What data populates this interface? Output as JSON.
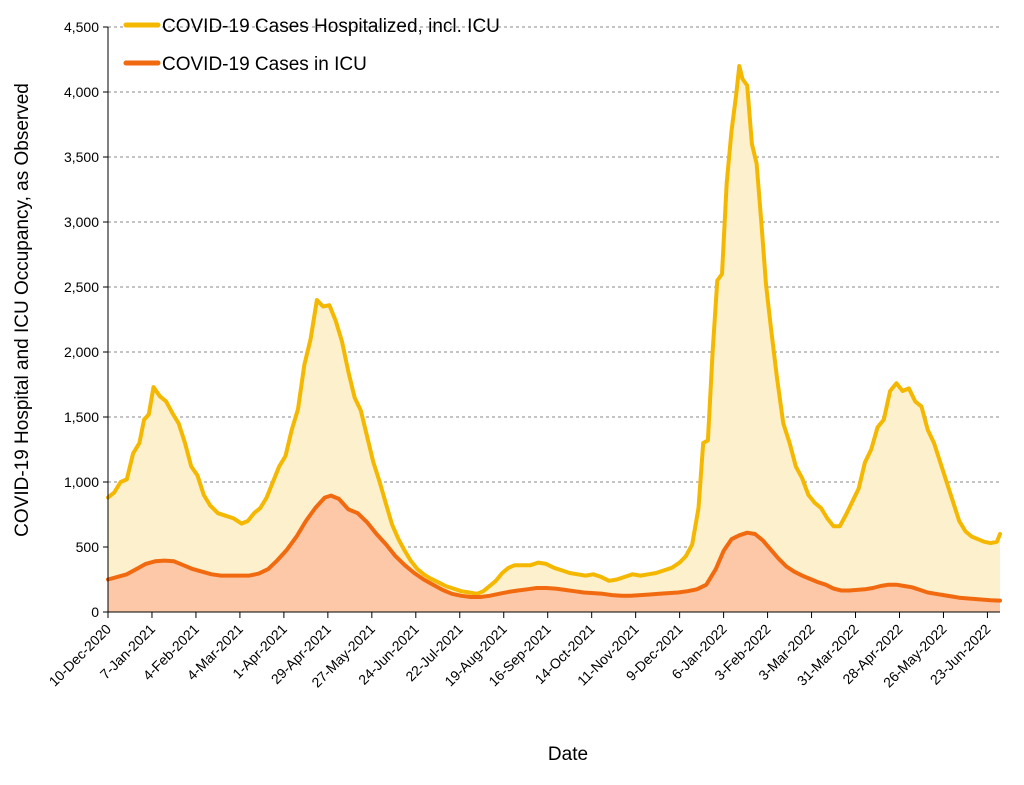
{
  "chart_data": {
    "type": "area",
    "title": "",
    "xlabel": "Date",
    "ylabel": "COVID-19 Hospital and ICU Occupancy, as Observed",
    "ylim": [
      0,
      4500
    ],
    "yticks": [
      0,
      500,
      1000,
      1500,
      2000,
      2500,
      3000,
      3500,
      4000,
      4500
    ],
    "ytick_labels": [
      "0",
      "500",
      "1,000",
      "1,500",
      "2,000",
      "2,500",
      "3,000",
      "3,500",
      "4,000",
      "4,500"
    ],
    "xlim": [
      "2020-12-10",
      "2022-07-01"
    ],
    "xtick_dates": [
      "2020-12-10",
      "2021-01-07",
      "2021-02-04",
      "2021-03-04",
      "2021-04-01",
      "2021-04-29",
      "2021-05-27",
      "2021-06-24",
      "2021-07-22",
      "2021-08-19",
      "2021-09-16",
      "2021-10-14",
      "2021-11-11",
      "2021-12-09",
      "2022-01-06",
      "2022-02-03",
      "2022-03-03",
      "2022-03-31",
      "2022-04-28",
      "2022-05-26",
      "2022-06-23"
    ],
    "xtick_labels": [
      "10-Dec-2020",
      "7-Jan-2021",
      "4-Feb-2021",
      "4-Mar-2021",
      "1-Apr-2021",
      "29-Apr-2021",
      "27-May-2021",
      "24-Jun-2021",
      "22-Jul-2021",
      "19-Aug-2021",
      "16-Sep-2021",
      "14-Oct-2021",
      "11-Nov-2021",
      "9-Dec-2021",
      "6-Jan-2022",
      "3-Feb-2022",
      "3-Mar-2022",
      "31-Mar-2022",
      "28-Apr-2022",
      "26-May-2022",
      "23-Jun-2022"
    ],
    "grid": "horizontal-dashed",
    "legend_position": "top-left",
    "series": [
      {
        "name": "COVID-19 Cases Hospitalized, incl. ICU",
        "color": "#f5b800",
        "fill": "#fdf0cc",
        "points": [
          [
            "2020-12-10",
            880
          ],
          [
            "2020-12-14",
            920
          ],
          [
            "2020-12-18",
            1000
          ],
          [
            "2020-12-22",
            1020
          ],
          [
            "2020-12-26",
            1220
          ],
          [
            "2020-12-30",
            1300
          ],
          [
            "2021-01-02",
            1480
          ],
          [
            "2021-01-05",
            1520
          ],
          [
            "2021-01-08",
            1730
          ],
          [
            "2021-01-12",
            1660
          ],
          [
            "2021-01-16",
            1620
          ],
          [
            "2021-01-20",
            1530
          ],
          [
            "2021-01-24",
            1450
          ],
          [
            "2021-01-28",
            1300
          ],
          [
            "2021-02-01",
            1120
          ],
          [
            "2021-02-05",
            1050
          ],
          [
            "2021-02-09",
            900
          ],
          [
            "2021-02-13",
            820
          ],
          [
            "2021-02-18",
            760
          ],
          [
            "2021-02-23",
            740
          ],
          [
            "2021-02-28",
            720
          ],
          [
            "2021-03-05",
            680
          ],
          [
            "2021-03-09",
            700
          ],
          [
            "2021-03-13",
            760
          ],
          [
            "2021-03-17",
            800
          ],
          [
            "2021-03-21",
            880
          ],
          [
            "2021-03-25",
            1000
          ],
          [
            "2021-03-29",
            1120
          ],
          [
            "2021-04-02",
            1200
          ],
          [
            "2021-04-06",
            1400
          ],
          [
            "2021-04-10",
            1560
          ],
          [
            "2021-04-14",
            1900
          ],
          [
            "2021-04-18",
            2100
          ],
          [
            "2021-04-22",
            2400
          ],
          [
            "2021-04-26",
            2350
          ],
          [
            "2021-04-30",
            2360
          ],
          [
            "2021-05-04",
            2240
          ],
          [
            "2021-05-08",
            2080
          ],
          [
            "2021-05-12",
            1850
          ],
          [
            "2021-05-16",
            1650
          ],
          [
            "2021-05-20",
            1550
          ],
          [
            "2021-05-24",
            1350
          ],
          [
            "2021-05-28",
            1150
          ],
          [
            "2021-06-01",
            1000
          ],
          [
            "2021-06-05",
            830
          ],
          [
            "2021-06-09",
            670
          ],
          [
            "2021-06-13",
            560
          ],
          [
            "2021-06-17",
            470
          ],
          [
            "2021-06-21",
            390
          ],
          [
            "2021-06-25",
            330
          ],
          [
            "2021-06-29",
            290
          ],
          [
            "2021-07-03",
            260
          ],
          [
            "2021-07-08",
            230
          ],
          [
            "2021-07-13",
            200
          ],
          [
            "2021-07-18",
            180
          ],
          [
            "2021-07-23",
            160
          ],
          [
            "2021-07-28",
            150
          ],
          [
            "2021-08-02",
            140
          ],
          [
            "2021-08-06",
            160
          ],
          [
            "2021-08-10",
            200
          ],
          [
            "2021-08-14",
            240
          ],
          [
            "2021-08-18",
            300
          ],
          [
            "2021-08-22",
            340
          ],
          [
            "2021-08-26",
            360
          ],
          [
            "2021-08-31",
            360
          ],
          [
            "2021-09-05",
            360
          ],
          [
            "2021-09-10",
            380
          ],
          [
            "2021-09-15",
            370
          ],
          [
            "2021-09-20",
            340
          ],
          [
            "2021-09-25",
            320
          ],
          [
            "2021-09-30",
            300
          ],
          [
            "2021-10-05",
            290
          ],
          [
            "2021-10-10",
            280
          ],
          [
            "2021-10-15",
            290
          ],
          [
            "2021-10-20",
            270
          ],
          [
            "2021-10-25",
            240
          ],
          [
            "2021-10-30",
            250
          ],
          [
            "2021-11-04",
            270
          ],
          [
            "2021-11-09",
            290
          ],
          [
            "2021-11-14",
            280
          ],
          [
            "2021-11-19",
            290
          ],
          [
            "2021-11-24",
            300
          ],
          [
            "2021-11-29",
            320
          ],
          [
            "2021-12-04",
            340
          ],
          [
            "2021-12-09",
            380
          ],
          [
            "2021-12-13",
            430
          ],
          [
            "2021-12-17",
            520
          ],
          [
            "2021-12-21",
            800
          ],
          [
            "2021-12-24",
            1300
          ],
          [
            "2021-12-27",
            1320
          ],
          [
            "2021-12-30",
            2000
          ],
          [
            "2022-01-02",
            2550
          ],
          [
            "2022-01-05",
            2600
          ],
          [
            "2022-01-08",
            3300
          ],
          [
            "2022-01-11",
            3700
          ],
          [
            "2022-01-14",
            3980
          ],
          [
            "2022-01-16",
            4200
          ],
          [
            "2022-01-18",
            4100
          ],
          [
            "2022-01-21",
            4050
          ],
          [
            "2022-01-24",
            3600
          ],
          [
            "2022-01-27",
            3450
          ],
          [
            "2022-01-30",
            3000
          ],
          [
            "2022-02-02",
            2520
          ],
          [
            "2022-02-05",
            2200
          ],
          [
            "2022-02-09",
            1800
          ],
          [
            "2022-02-13",
            1450
          ],
          [
            "2022-02-17",
            1300
          ],
          [
            "2022-02-21",
            1120
          ],
          [
            "2022-02-25",
            1030
          ],
          [
            "2022-03-01",
            900
          ],
          [
            "2022-03-05",
            840
          ],
          [
            "2022-03-09",
            800
          ],
          [
            "2022-03-13",
            720
          ],
          [
            "2022-03-17",
            660
          ],
          [
            "2022-03-21",
            660
          ],
          [
            "2022-03-25",
            750
          ],
          [
            "2022-03-29",
            850
          ],
          [
            "2022-04-02",
            950
          ],
          [
            "2022-04-06",
            1150
          ],
          [
            "2022-04-10",
            1250
          ],
          [
            "2022-04-14",
            1420
          ],
          [
            "2022-04-18",
            1480
          ],
          [
            "2022-04-22",
            1700
          ],
          [
            "2022-04-26",
            1760
          ],
          [
            "2022-04-30",
            1700
          ],
          [
            "2022-05-04",
            1720
          ],
          [
            "2022-05-08",
            1620
          ],
          [
            "2022-05-12",
            1580
          ],
          [
            "2022-05-16",
            1400
          ],
          [
            "2022-05-20",
            1300
          ],
          [
            "2022-05-24",
            1150
          ],
          [
            "2022-05-28",
            1000
          ],
          [
            "2022-06-01",
            850
          ],
          [
            "2022-06-05",
            700
          ],
          [
            "2022-06-09",
            620
          ],
          [
            "2022-06-13",
            580
          ],
          [
            "2022-06-17",
            560
          ],
          [
            "2022-06-21",
            540
          ],
          [
            "2022-06-25",
            530
          ],
          [
            "2022-06-29",
            540
          ],
          [
            "2022-07-01",
            600
          ]
        ]
      },
      {
        "name": "COVID-19 Cases in ICU",
        "color": "#f26a10",
        "fill": "#fcc8a8",
        "points": [
          [
            "2020-12-10",
            250
          ],
          [
            "2020-12-16",
            270
          ],
          [
            "2020-12-22",
            290
          ],
          [
            "2020-12-28",
            330
          ],
          [
            "2021-01-03",
            370
          ],
          [
            "2021-01-09",
            390
          ],
          [
            "2021-01-15",
            395
          ],
          [
            "2021-01-21",
            390
          ],
          [
            "2021-01-27",
            360
          ],
          [
            "2021-02-02",
            330
          ],
          [
            "2021-02-08",
            310
          ],
          [
            "2021-02-14",
            290
          ],
          [
            "2021-02-20",
            280
          ],
          [
            "2021-02-26",
            280
          ],
          [
            "2021-03-04",
            280
          ],
          [
            "2021-03-10",
            280
          ],
          [
            "2021-03-16",
            295
          ],
          [
            "2021-03-22",
            330
          ],
          [
            "2021-03-28",
            400
          ],
          [
            "2021-04-03",
            480
          ],
          [
            "2021-04-09",
            580
          ],
          [
            "2021-04-15",
            700
          ],
          [
            "2021-04-21",
            800
          ],
          [
            "2021-04-27",
            880
          ],
          [
            "2021-05-01",
            895
          ],
          [
            "2021-05-06",
            870
          ],
          [
            "2021-05-12",
            790
          ],
          [
            "2021-05-18",
            760
          ],
          [
            "2021-05-24",
            690
          ],
          [
            "2021-05-30",
            600
          ],
          [
            "2021-06-05",
            520
          ],
          [
            "2021-06-11",
            430
          ],
          [
            "2021-06-17",
            360
          ],
          [
            "2021-06-23",
            300
          ],
          [
            "2021-06-29",
            250
          ],
          [
            "2021-07-05",
            210
          ],
          [
            "2021-07-11",
            170
          ],
          [
            "2021-07-17",
            140
          ],
          [
            "2021-07-23",
            125
          ],
          [
            "2021-07-29",
            115
          ],
          [
            "2021-08-04",
            115
          ],
          [
            "2021-08-10",
            125
          ],
          [
            "2021-08-16",
            140
          ],
          [
            "2021-08-22",
            155
          ],
          [
            "2021-08-28",
            165
          ],
          [
            "2021-09-03",
            175
          ],
          [
            "2021-09-09",
            185
          ],
          [
            "2021-09-15",
            185
          ],
          [
            "2021-09-21",
            180
          ],
          [
            "2021-09-27",
            170
          ],
          [
            "2021-10-03",
            160
          ],
          [
            "2021-10-09",
            150
          ],
          [
            "2021-10-15",
            145
          ],
          [
            "2021-10-21",
            140
          ],
          [
            "2021-10-27",
            130
          ],
          [
            "2021-11-02",
            125
          ],
          [
            "2021-11-08",
            125
          ],
          [
            "2021-11-14",
            130
          ],
          [
            "2021-11-20",
            135
          ],
          [
            "2021-11-26",
            140
          ],
          [
            "2021-12-02",
            145
          ],
          [
            "2021-12-08",
            150
          ],
          [
            "2021-12-14",
            160
          ],
          [
            "2021-12-20",
            175
          ],
          [
            "2021-12-26",
            210
          ],
          [
            "2022-01-01",
            330
          ],
          [
            "2022-01-06",
            470
          ],
          [
            "2022-01-11",
            560
          ],
          [
            "2022-01-16",
            590
          ],
          [
            "2022-01-21",
            610
          ],
          [
            "2022-01-26",
            600
          ],
          [
            "2022-01-31",
            550
          ],
          [
            "2022-02-05",
            480
          ],
          [
            "2022-02-10",
            410
          ],
          [
            "2022-02-15",
            350
          ],
          [
            "2022-02-20",
            310
          ],
          [
            "2022-02-25",
            280
          ],
          [
            "2022-03-02",
            255
          ],
          [
            "2022-03-07",
            230
          ],
          [
            "2022-03-12",
            210
          ],
          [
            "2022-03-17",
            180
          ],
          [
            "2022-03-22",
            165
          ],
          [
            "2022-03-27",
            165
          ],
          [
            "2022-04-01",
            170
          ],
          [
            "2022-04-06",
            175
          ],
          [
            "2022-04-11",
            185
          ],
          [
            "2022-04-16",
            200
          ],
          [
            "2022-04-21",
            210
          ],
          [
            "2022-04-26",
            210
          ],
          [
            "2022-05-01",
            200
          ],
          [
            "2022-05-06",
            190
          ],
          [
            "2022-05-11",
            170
          ],
          [
            "2022-05-16",
            150
          ],
          [
            "2022-05-21",
            140
          ],
          [
            "2022-05-26",
            130
          ],
          [
            "2022-05-31",
            120
          ],
          [
            "2022-06-05",
            110
          ],
          [
            "2022-06-10",
            105
          ],
          [
            "2022-06-15",
            100
          ],
          [
            "2022-06-20",
            95
          ],
          [
            "2022-06-25",
            90
          ],
          [
            "2022-07-01",
            88
          ]
        ]
      }
    ]
  }
}
